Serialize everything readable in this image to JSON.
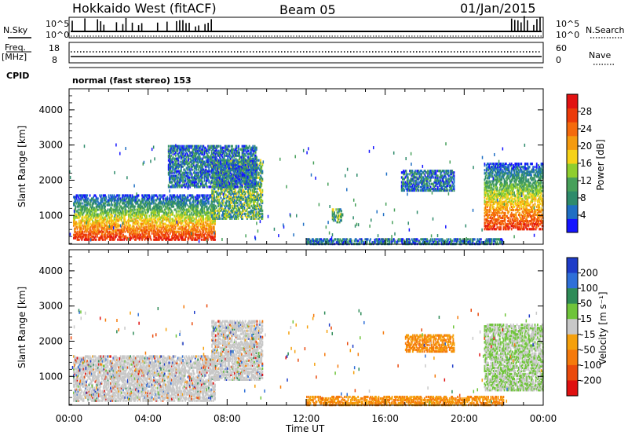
{
  "header": {
    "radar": "Hokkaido West (fitACF)",
    "beam": "Beam 05",
    "date": "01/Jan/2015"
  },
  "status_panel": {
    "nsky_label": "N.Sky",
    "nsearch_label": "N.Search",
    "noise_ticks_left": [
      "10^5",
      "10^0"
    ],
    "noise_ticks_right": [
      "10^5",
      "10^0"
    ],
    "freq_label": "Freq.",
    "freq_unit": "[MHz]",
    "freq_ticks": [
      "18",
      "8"
    ],
    "nave_label": "Nave",
    "nave_ticks": [
      "60",
      "0"
    ],
    "cpid_label": "CPID",
    "cpid_value": "normal (fast stereo) 153"
  },
  "x_axis": {
    "label": "Time UT",
    "ticks": [
      "00:00",
      "04:00",
      "08:00",
      "12:00",
      "16:00",
      "20:00",
      "00:00"
    ]
  },
  "chart_data": [
    {
      "type": "heatmap",
      "name": "power",
      "ylabel": "Slant Range [km]",
      "yticks": [
        "1000",
        "2000",
        "3000",
        "4000"
      ],
      "ylim": [
        180,
        4600
      ],
      "xlim_hours": [
        0,
        24
      ],
      "colorbar": {
        "label": "Power [dB]",
        "ticks": [
          "4",
          "8",
          "12",
          "16",
          "20",
          "24",
          "28"
        ],
        "range": [
          0,
          30
        ],
        "colors": [
          "#1414ff",
          "#1f6fc4",
          "#2e8b6b",
          "#47a05a",
          "#8fce2e",
          "#f6d218",
          "#f59b0f",
          "#f56a0c",
          "#ec3a09",
          "#e21212"
        ]
      },
      "regions": [
        {
          "t0": 0.2,
          "t1": 7.4,
          "r0": 300,
          "r1": 1600,
          "level": "strong"
        },
        {
          "t0": 7.2,
          "t1": 9.8,
          "r0": 900,
          "r1": 2600,
          "level": "medium"
        },
        {
          "t0": 5.0,
          "t1": 9.5,
          "r0": 1800,
          "r1": 3000,
          "level": "weak"
        },
        {
          "t0": 13.3,
          "t1": 13.8,
          "r0": 800,
          "r1": 1200,
          "level": "medium"
        },
        {
          "t0": 16.8,
          "t1": 19.5,
          "r0": 1700,
          "r1": 2300,
          "level": "weak"
        },
        {
          "t0": 21.0,
          "t1": 24.0,
          "r0": 600,
          "r1": 2500,
          "level": "strong"
        },
        {
          "t0": 12.0,
          "t1": 22.0,
          "r0": 180,
          "r1": 350,
          "level": "weak"
        }
      ]
    },
    {
      "type": "heatmap",
      "name": "velocity",
      "ylabel": "Slant Range [km]",
      "yticks": [
        "1000",
        "2000",
        "3000",
        "4000"
      ],
      "ylim": [
        180,
        4600
      ],
      "xlim_hours": [
        0,
        24
      ],
      "colorbar": {
        "label": "Velocity [m s⁻¹]",
        "ticks": [
          "200",
          "100",
          "50",
          "15",
          "-15",
          "-50",
          "-100",
          "-200"
        ],
        "colors": [
          "#1e3cc8",
          "#2e6fd8",
          "#2e8b57",
          "#6fc43a",
          "#c8c8c8",
          "#f5a00c",
          "#f57a0c",
          "#ea4a0c",
          "#e01010"
        ]
      },
      "regions": [
        {
          "t0": 0.2,
          "t1": 7.4,
          "r0": 300,
          "r1": 1600,
          "level": "ground"
        },
        {
          "t0": 7.2,
          "t1": 9.8,
          "r0": 900,
          "r1": 2600,
          "level": "ground"
        },
        {
          "t0": 17.0,
          "t1": 19.5,
          "r0": 1700,
          "r1": 2200,
          "level": "negative"
        },
        {
          "t0": 21.0,
          "t1": 24.0,
          "r0": 600,
          "r1": 2500,
          "level": "mixed"
        },
        {
          "t0": 12.0,
          "t1": 22.0,
          "r0": 180,
          "r1": 450,
          "level": "negative"
        }
      ]
    }
  ]
}
